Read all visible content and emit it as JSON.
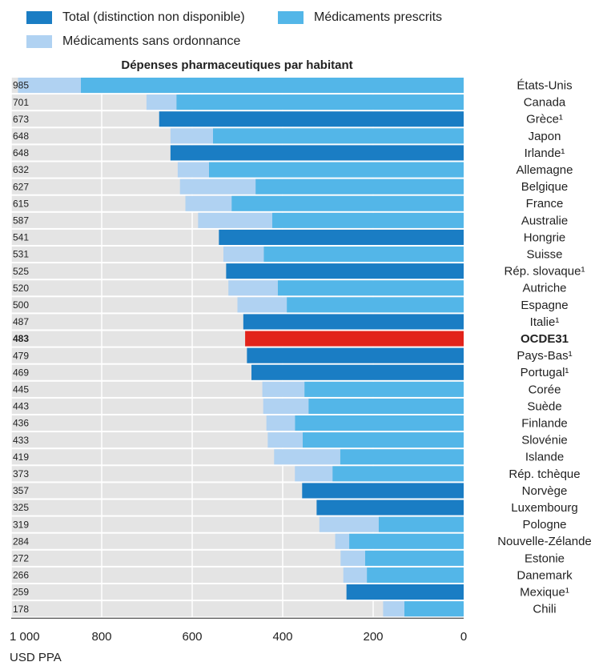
{
  "chart_data": {
    "type": "stacked-barh",
    "title": "Dépenses pharmaceutiques par habitant",
    "xlabel": "USD PPA",
    "xlim": [
      1000,
      0
    ],
    "xticks": [
      {
        "value": 1000,
        "label": "1 000"
      },
      800,
      600,
      400,
      200,
      0
    ],
    "grid": true,
    "legend": "top",
    "highlight": {
      "index": 15,
      "color": "#e2231a"
    },
    "categories": [
      "États-Unis",
      "Canada",
      "Grèce¹",
      "Japon",
      "Irlande¹",
      "Allemagne",
      "Belgique",
      "France",
      "Australie",
      "Hongrie",
      "Suisse",
      "Rép. slovaque¹",
      "Autriche",
      "Espagne",
      "Italie¹",
      "OCDE31",
      "Pays-Bas¹",
      "Portugal¹",
      "Corée",
      "Suède",
      "Finlande",
      "Slovénie",
      "Islande",
      "Rép. tchèque",
      "Norvège",
      "Luxembourg",
      "Pologne",
      "Nouvelle-Zélande",
      "Estonie",
      "Danemark",
      "Mexique¹",
      "Chili"
    ],
    "totals": [
      985,
      701,
      673,
      648,
      648,
      632,
      627,
      615,
      587,
      541,
      531,
      525,
      520,
      500,
      487,
      483,
      479,
      469,
      445,
      443,
      436,
      433,
      419,
      373,
      357,
      325,
      319,
      284,
      272,
      266,
      259,
      178
    ],
    "series": [
      {
        "name": "Total (distinction non disponible)",
        "color": "#1a7dc4",
        "values": [
          null,
          null,
          673,
          null,
          648,
          null,
          null,
          null,
          null,
          541,
          null,
          525,
          null,
          null,
          487,
          483,
          479,
          469,
          null,
          null,
          null,
          null,
          null,
          null,
          357,
          325,
          null,
          null,
          null,
          null,
          259,
          null
        ]
      },
      {
        "name": "Médicaments prescrits",
        "color": "#53b6e8",
        "values": [
          846,
          635,
          null,
          554,
          null,
          563,
          460,
          513,
          423,
          null,
          442,
          null,
          411,
          391,
          null,
          null,
          null,
          null,
          352,
          343,
          373,
          356,
          273,
          290,
          null,
          null,
          188,
          253,
          218,
          214,
          null,
          131
        ]
      },
      {
        "name": "Médicaments sans ordonnance",
        "color": "#b0d2f2",
        "values": [
          139,
          66,
          null,
          94,
          null,
          69,
          167,
          102,
          164,
          null,
          89,
          null,
          109,
          109,
          null,
          null,
          null,
          null,
          93,
          100,
          63,
          77,
          146,
          83,
          null,
          null,
          131,
          31,
          54,
          52,
          null,
          47
        ]
      }
    ]
  }
}
